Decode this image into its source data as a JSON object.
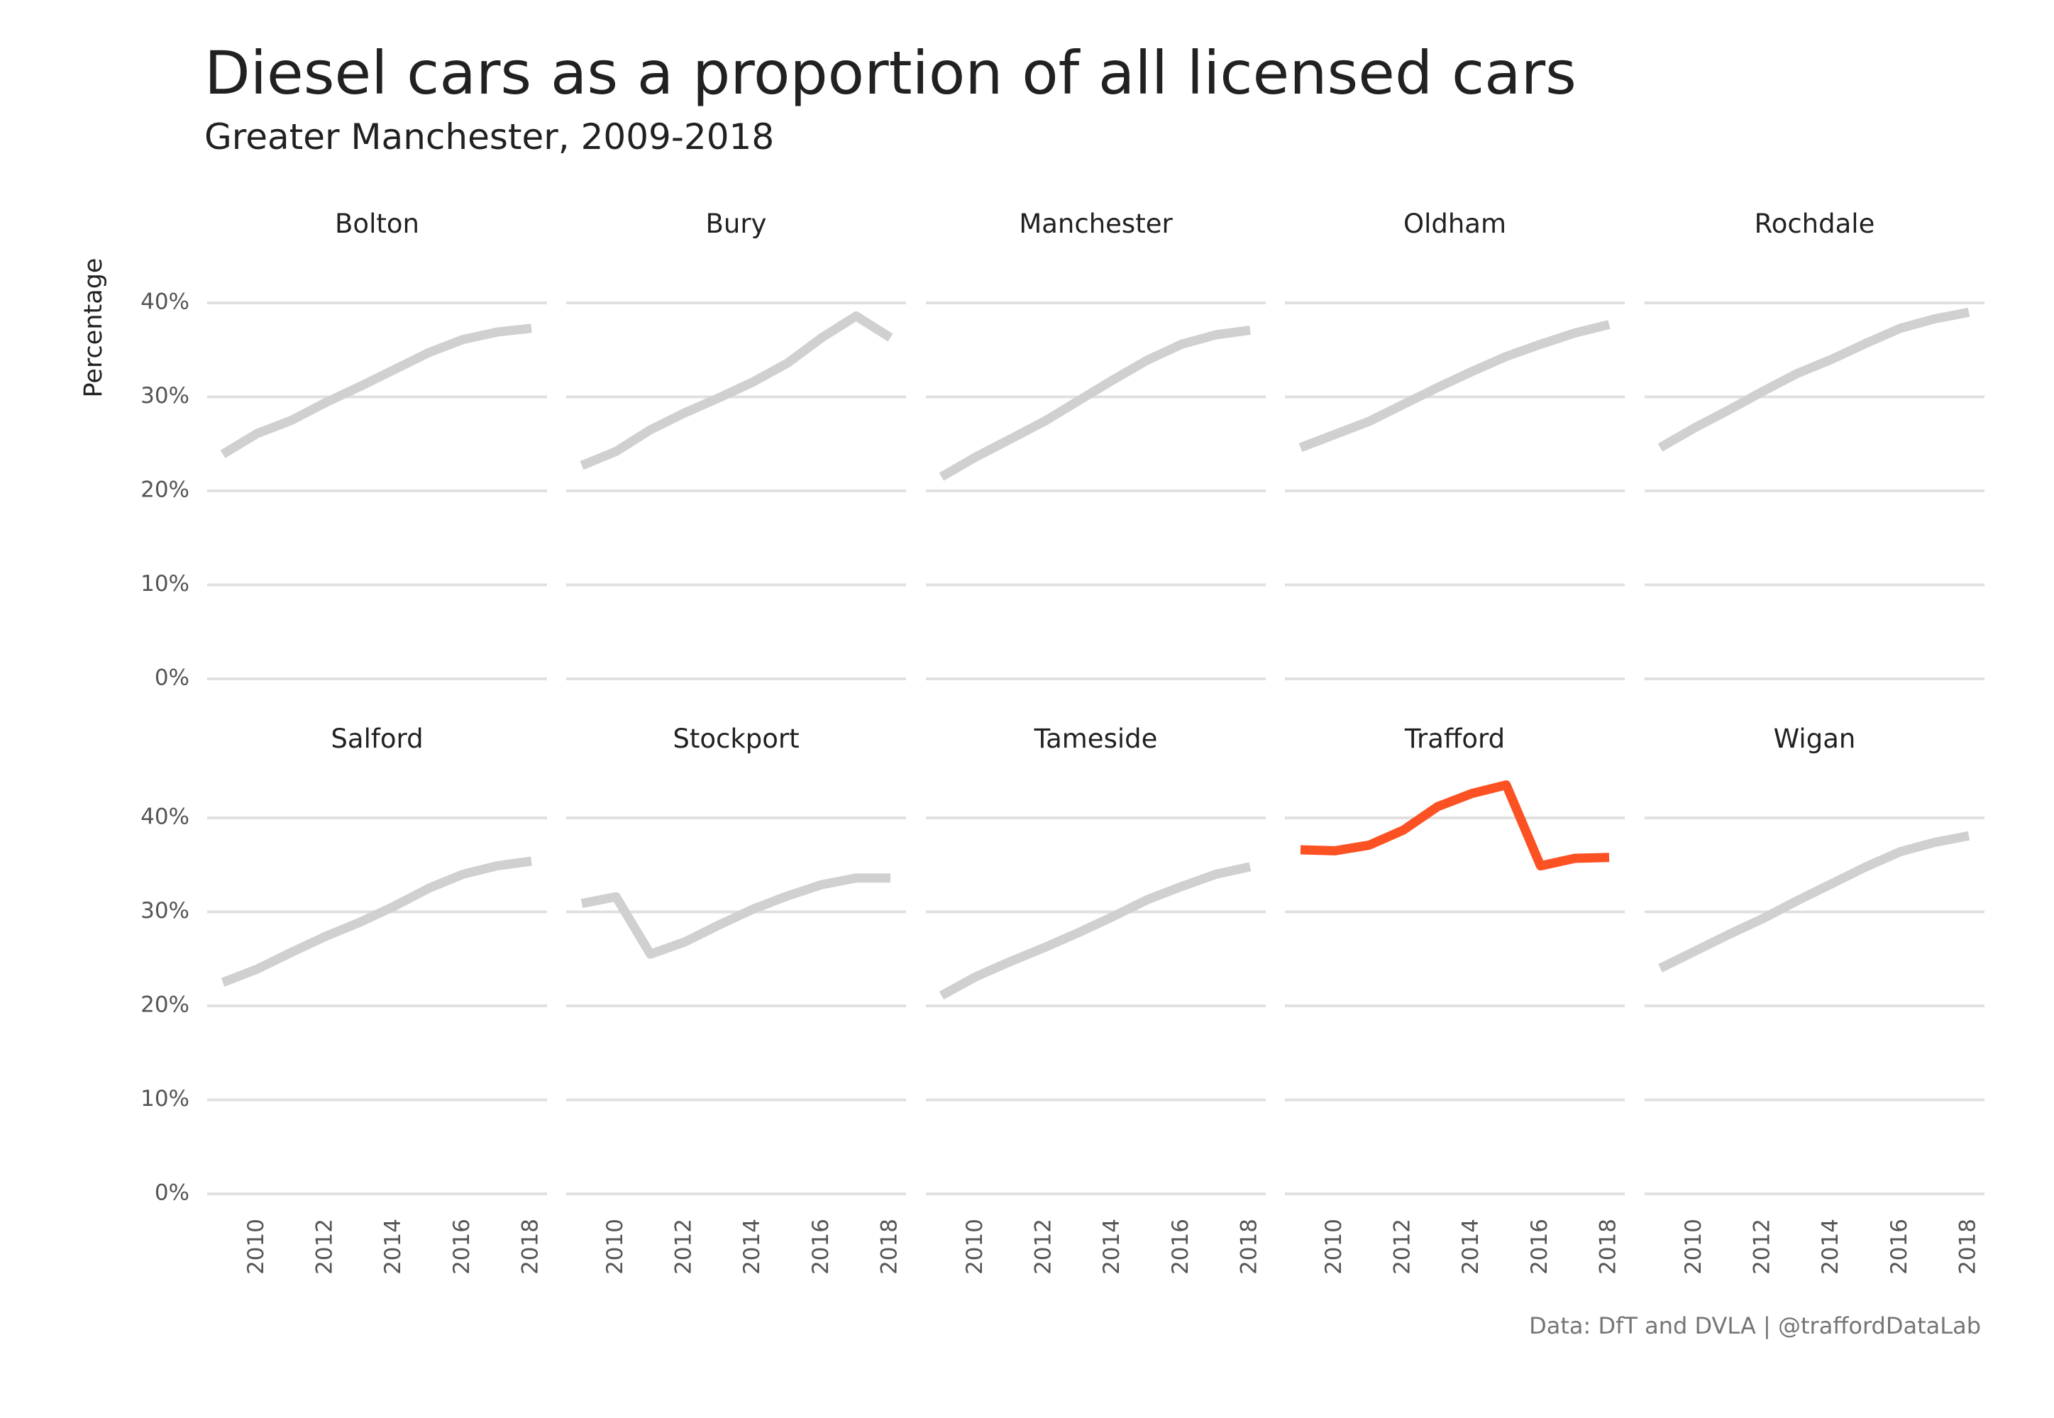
{
  "title": "Diesel cars as a proportion of all licensed cars",
  "subtitle": "Greater Manchester, 2009-2018",
  "caption": "Data: DfT and DVLA | @traffordDataLab",
  "colors": {
    "highlight": "#fc5123",
    "other": "#d0d0d0",
    "grid": "#e0e0e0"
  },
  "chart_data": {
    "type": "line",
    "ylabel": "Percentage",
    "ylim": [
      0,
      40
    ],
    "yticks": [
      0,
      10,
      20,
      30,
      40
    ],
    "ytick_labels": [
      "0%",
      "10%",
      "20%",
      "30%",
      "40%"
    ],
    "xlim": [
      2009,
      2018
    ],
    "xticks": [
      2010,
      2012,
      2014,
      2016,
      2018
    ],
    "xtick_labels": [
      "2010",
      "2012",
      "2014",
      "2016",
      "2018"
    ],
    "grid": true,
    "highlight": "Trafford",
    "x": [
      2009,
      2010,
      2011,
      2012,
      2013,
      2014,
      2015,
      2016,
      2017,
      2018
    ],
    "series": [
      {
        "name": "Bolton",
        "values": [
          23.9,
          26.1,
          27.5,
          29.4,
          31.1,
          32.9,
          34.7,
          36.1,
          36.9,
          37.3
        ]
      },
      {
        "name": "Bury",
        "values": [
          22.7,
          24.2,
          26.5,
          28.3,
          29.9,
          31.6,
          33.6,
          36.3,
          38.6,
          36.3
        ]
      },
      {
        "name": "Manchester",
        "values": [
          21.5,
          23.6,
          25.5,
          27.4,
          29.6,
          31.8,
          33.9,
          35.6,
          36.6,
          37.1
        ]
      },
      {
        "name": "Oldham",
        "values": [
          24.6,
          26.0,
          27.4,
          29.2,
          31.0,
          32.7,
          34.3,
          35.6,
          36.8,
          37.7
        ]
      },
      {
        "name": "Rochdale",
        "values": [
          24.6,
          26.7,
          28.6,
          30.6,
          32.5,
          34.0,
          35.7,
          37.3,
          38.3,
          39.0
        ]
      },
      {
        "name": "Salford",
        "values": [
          22.5,
          23.9,
          25.7,
          27.4,
          28.9,
          30.6,
          32.5,
          34.0,
          34.9,
          35.4
        ]
      },
      {
        "name": "Stockport",
        "values": [
          30.9,
          31.6,
          25.5,
          26.8,
          28.6,
          30.3,
          31.7,
          32.9,
          33.6,
          33.6
        ]
      },
      {
        "name": "Tameside",
        "values": [
          21.1,
          23.1,
          24.7,
          26.2,
          27.8,
          29.5,
          31.3,
          32.7,
          34.0,
          34.8
        ]
      },
      {
        "name": "Trafford",
        "values": [
          36.6,
          36.5,
          37.1,
          38.7,
          41.2,
          42.6,
          43.5,
          34.9,
          35.7,
          35.8
        ]
      },
      {
        "name": "Wigan",
        "values": [
          24.0,
          25.8,
          27.6,
          29.3,
          31.2,
          33.0,
          34.8,
          36.4,
          37.4,
          38.1
        ]
      }
    ]
  }
}
